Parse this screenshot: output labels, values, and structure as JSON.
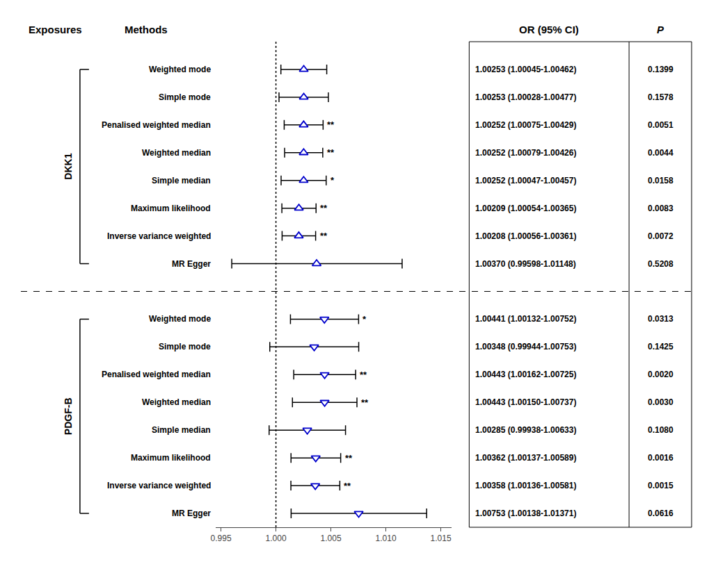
{
  "chart_data": {
    "type": "forest",
    "color": "#000000",
    "headers": [
      "Exposures",
      "Methods",
      "OR (95% CI)",
      "P"
    ],
    "xlim": [
      0.9945,
      1.016
    ],
    "xticks": [
      0.995,
      {
        "value": 1.0,
        "label": "1.000"
      },
      1.005,
      {
        "value": 1.01,
        "label": "1.010"
      },
      1.015
    ],
    "reference_line": 1.0,
    "grid": false,
    "tick_labels": "x",
    "series": [
      {
        "name": "DKK1",
        "marker": "triangle-up",
        "color": "#0000CC",
        "rows": [
          {
            "method": "Weighted mode",
            "or": 1.00253,
            "ci_low": 1.00045,
            "ci_high": 1.00462,
            "or_text": "1.00253 (1.00045-1.00462)",
            "p_text": "0.1399"
          },
          {
            "method": "Simple mode",
            "or": 1.00253,
            "ci_low": 1.00028,
            "ci_high": 1.00477,
            "or_text": "1.00253 (1.00028-1.00477)",
            "p_text": "0.1578"
          },
          {
            "method": "Penalised weighted median",
            "or": 1.00252,
            "ci_low": 1.00075,
            "ci_high": 1.00429,
            "or_text": "1.00252 (1.00075-1.00429)",
            "p_text": "0.0051",
            "sig": "**"
          },
          {
            "method": "Weighted median",
            "or": 1.00252,
            "ci_low": 1.00079,
            "ci_high": 1.00426,
            "or_text": "1.00252 (1.00079-1.00426)",
            "p_text": "0.0044",
            "sig": "**"
          },
          {
            "method": "Simple median",
            "or": 1.00252,
            "ci_low": 1.00047,
            "ci_high": 1.00457,
            "or_text": "1.00252 (1.00047-1.00457)",
            "p_text": "0.0158",
            "sig": "*"
          },
          {
            "method": "Maximum likelihood",
            "or": 1.00209,
            "ci_low": 1.00054,
            "ci_high": 1.00365,
            "or_text": "1.00209 (1.00054-1.00365)",
            "p_text": "0.0083",
            "sig": "**"
          },
          {
            "method": "Inverse variance weighted",
            "or": 1.00208,
            "ci_low": 1.00056,
            "ci_high": 1.00361,
            "or_text": "1.00208 (1.00056-1.00361)",
            "p_text": "0.0072",
            "sig": "**"
          },
          {
            "method": "MR Egger",
            "or": 1.0037,
            "ci_low": 0.99598,
            "ci_high": 1.01148,
            "or_text": "1.00370 (0.99598-1.01148)",
            "p_text": "0.5208"
          }
        ]
      },
      {
        "name": "PDGF-B",
        "marker": "triangle-down",
        "color": "#0000CC",
        "rows": [
          {
            "method": "Weighted mode",
            "or": 1.00441,
            "ci_low": 1.00132,
            "ci_high": 1.00752,
            "or_text": "1.00441 (1.00132-1.00752)",
            "p_text": "0.0313",
            "sig": "*"
          },
          {
            "method": "Simple mode",
            "or": 1.00348,
            "ci_low": 0.99944,
            "ci_high": 1.00753,
            "or_text": "1.00348 (0.99944-1.00753)",
            "p_text": "0.1425"
          },
          {
            "method": "Penalised weighted median",
            "or": 1.00443,
            "ci_low": 1.00162,
            "ci_high": 1.00725,
            "or_text": "1.00443 (1.00162-1.00725)",
            "p_text": "0.0020",
            "sig": "**"
          },
          {
            "method": "Weighted median",
            "or": 1.00443,
            "ci_low": 1.0015,
            "ci_high": 1.00737,
            "or_text": "1.00443 (1.00150-1.00737)",
            "p_text": "0.0030",
            "sig": "**"
          },
          {
            "method": "Simple median",
            "or": 1.00285,
            "ci_low": 0.99938,
            "ci_high": 1.00633,
            "or_text": "1.00285 (0.99938-1.00633)",
            "p_text": "0.1080"
          },
          {
            "method": "Maximum likelihood",
            "or": 1.00362,
            "ci_low": 1.00137,
            "ci_high": 1.00589,
            "or_text": "1.00362 (1.00137-1.00589)",
            "p_text": "0.0016",
            "sig": "**"
          },
          {
            "method": "Inverse variance weighted",
            "or": 1.00358,
            "ci_low": 1.00136,
            "ci_high": 1.00581,
            "or_text": "1.00358 (1.00136-1.00581)",
            "p_text": "0.0015",
            "sig": "**"
          },
          {
            "method": "MR Egger",
            "or": 1.00753,
            "ci_low": 1.00138,
            "ci_high": 1.01371,
            "or_text": "1.00753 (1.00138-1.01371)",
            "p_text": "0.0616"
          }
        ]
      }
    ]
  }
}
